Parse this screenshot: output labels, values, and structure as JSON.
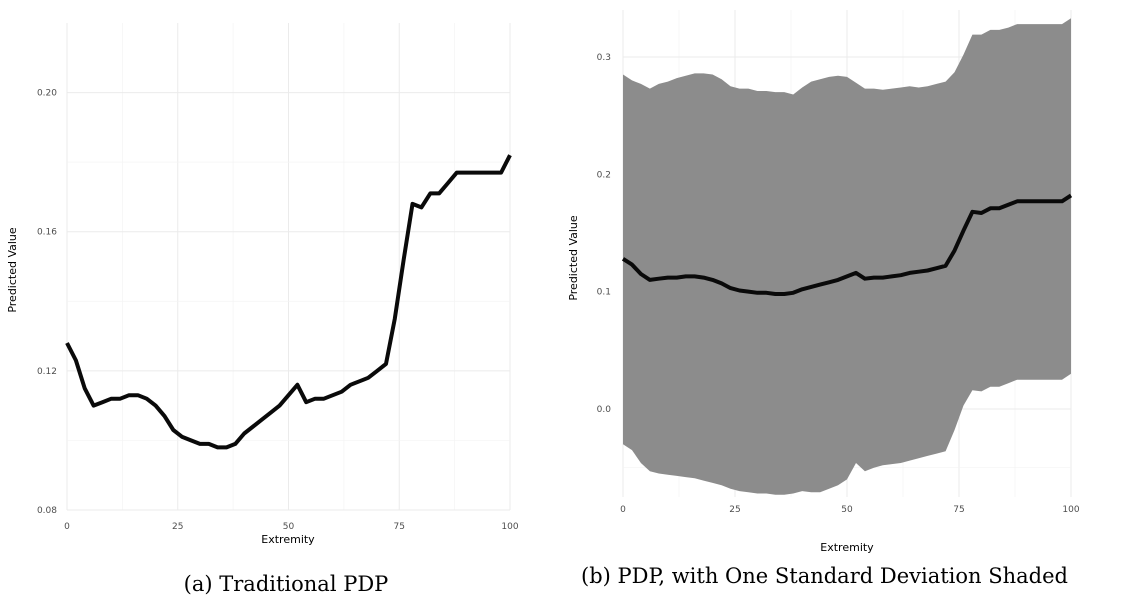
{
  "chart_data": [
    {
      "type": "line",
      "xlabel": "Extremity",
      "ylabel": "Predicted Value",
      "xlim": [
        0,
        100
      ],
      "ylim": [
        0.08,
        0.22
      ],
      "xticks": [
        0,
        25,
        50,
        75,
        100
      ],
      "yticks": [
        0.08,
        0.12,
        0.16,
        0.2
      ],
      "ytick_labels": [
        "0.08",
        "0.12",
        "0.16",
        "0.20"
      ],
      "grid": true,
      "caption": "(a) Traditional PDP",
      "series": [
        {
          "x": [
            0,
            2,
            4,
            6,
            8,
            10,
            12,
            14,
            16,
            18,
            20,
            22,
            24,
            26,
            28,
            30,
            32,
            34,
            36,
            38,
            40,
            42,
            44,
            46,
            48,
            50,
            52,
            54,
            56,
            58,
            60,
            62,
            64,
            66,
            68,
            70,
            72,
            74,
            76,
            78,
            80,
            82,
            84,
            86,
            88,
            90,
            92,
            94,
            96,
            98,
            100
          ],
          "y": [
            0.128,
            0.123,
            0.115,
            0.11,
            0.111,
            0.112,
            0.112,
            0.113,
            0.113,
            0.112,
            0.11,
            0.107,
            0.103,
            0.101,
            0.1,
            0.099,
            0.099,
            0.098,
            0.098,
            0.099,
            0.102,
            0.104,
            0.106,
            0.108,
            0.11,
            0.113,
            0.116,
            0.111,
            0.112,
            0.112,
            0.113,
            0.114,
            0.116,
            0.117,
            0.118,
            0.12,
            0.122,
            0.135,
            0.152,
            0.168,
            0.167,
            0.171,
            0.171,
            0.174,
            0.177,
            0.177,
            0.177,
            0.177,
            0.177,
            0.177,
            0.182
          ]
        }
      ]
    },
    {
      "type": "area",
      "xlabel": "Extremity",
      "ylabel": "Predicted Value",
      "xlim": [
        0,
        100
      ],
      "ylim": [
        -0.075,
        0.34
      ],
      "xticks": [
        0,
        25,
        50,
        75,
        100
      ],
      "yticks": [
        0.0,
        0.1,
        0.2,
        0.3
      ],
      "ytick_labels": [
        "0.0",
        "0.1",
        "0.2",
        "0.3"
      ],
      "grid": true,
      "caption": "(b) PDP, with One Standard Deviation Shaded",
      "band_color": "#8c8c8c",
      "series": [
        {
          "x": [
            0,
            2,
            4,
            6,
            8,
            10,
            12,
            14,
            16,
            18,
            20,
            22,
            24,
            26,
            28,
            30,
            32,
            34,
            36,
            38,
            40,
            42,
            44,
            46,
            48,
            50,
            52,
            54,
            56,
            58,
            60,
            62,
            64,
            66,
            68,
            70,
            72,
            74,
            76,
            78,
            80,
            82,
            84,
            86,
            88,
            90,
            92,
            94,
            96,
            98,
            100
          ],
          "y": [
            0.128,
            0.123,
            0.115,
            0.11,
            0.111,
            0.112,
            0.112,
            0.113,
            0.113,
            0.112,
            0.11,
            0.107,
            0.103,
            0.101,
            0.1,
            0.099,
            0.099,
            0.098,
            0.098,
            0.099,
            0.102,
            0.104,
            0.106,
            0.108,
            0.11,
            0.113,
            0.116,
            0.111,
            0.112,
            0.112,
            0.113,
            0.114,
            0.116,
            0.117,
            0.118,
            0.12,
            0.122,
            0.135,
            0.152,
            0.168,
            0.167,
            0.171,
            0.171,
            0.174,
            0.177,
            0.177,
            0.177,
            0.177,
            0.177,
            0.177,
            0.182
          ],
          "upper": [
            0.285,
            0.28,
            0.277,
            0.273,
            0.277,
            0.279,
            0.282,
            0.284,
            0.286,
            0.286,
            0.285,
            0.281,
            0.275,
            0.273,
            0.273,
            0.271,
            0.271,
            0.27,
            0.27,
            0.268,
            0.274,
            0.279,
            0.281,
            0.283,
            0.284,
            0.283,
            0.278,
            0.273,
            0.273,
            0.272,
            0.273,
            0.274,
            0.275,
            0.274,
            0.275,
            0.277,
            0.279,
            0.287,
            0.302,
            0.319,
            0.319,
            0.323,
            0.323,
            0.325,
            0.328,
            0.328,
            0.328,
            0.328,
            0.328,
            0.328,
            0.333
          ],
          "lower": [
            -0.03,
            -0.035,
            -0.046,
            -0.053,
            -0.055,
            -0.056,
            -0.057,
            -0.058,
            -0.059,
            -0.061,
            -0.063,
            -0.065,
            -0.068,
            -0.07,
            -0.071,
            -0.072,
            -0.072,
            -0.073,
            -0.073,
            -0.072,
            -0.07,
            -0.071,
            -0.071,
            -0.068,
            -0.065,
            -0.06,
            -0.046,
            -0.053,
            -0.05,
            -0.048,
            -0.047,
            -0.046,
            -0.044,
            -0.042,
            -0.04,
            -0.038,
            -0.036,
            -0.018,
            0.003,
            0.016,
            0.015,
            0.019,
            0.019,
            0.022,
            0.025,
            0.025,
            0.025,
            0.025,
            0.025,
            0.025,
            0.03
          ]
        }
      ]
    }
  ]
}
